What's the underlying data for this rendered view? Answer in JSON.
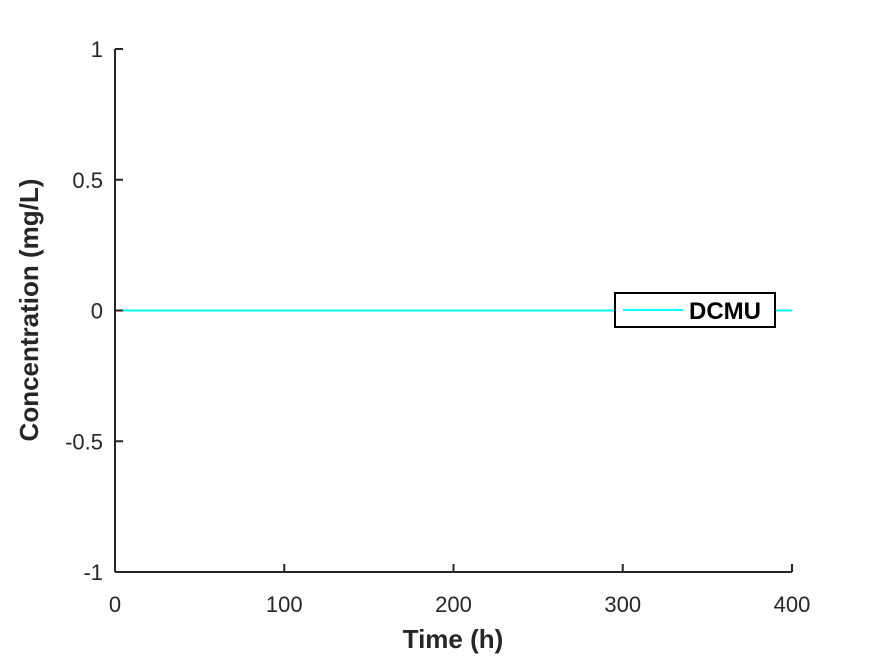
{
  "chart_data": {
    "type": "line",
    "xlabel": "Time (h)",
    "ylabel": "Concentration (mg/L)",
    "xlim": [
      0,
      400
    ],
    "ylim": [
      -1,
      1
    ],
    "xticks": [
      0,
      100,
      200,
      300,
      400
    ],
    "xtick_labels": [
      "0",
      "100",
      "200",
      "300",
      "400"
    ],
    "yticks": [
      -1,
      -0.5,
      0,
      0.5,
      1
    ],
    "ytick_labels": [
      "-1",
      "-0.5",
      "0",
      "0.5",
      "1"
    ],
    "grid": false,
    "legend_position": "right",
    "series": [
      {
        "name": "DCMU",
        "color": "#00ffff",
        "x": [
          0,
          400
        ],
        "y": [
          0,
          0
        ]
      }
    ]
  }
}
